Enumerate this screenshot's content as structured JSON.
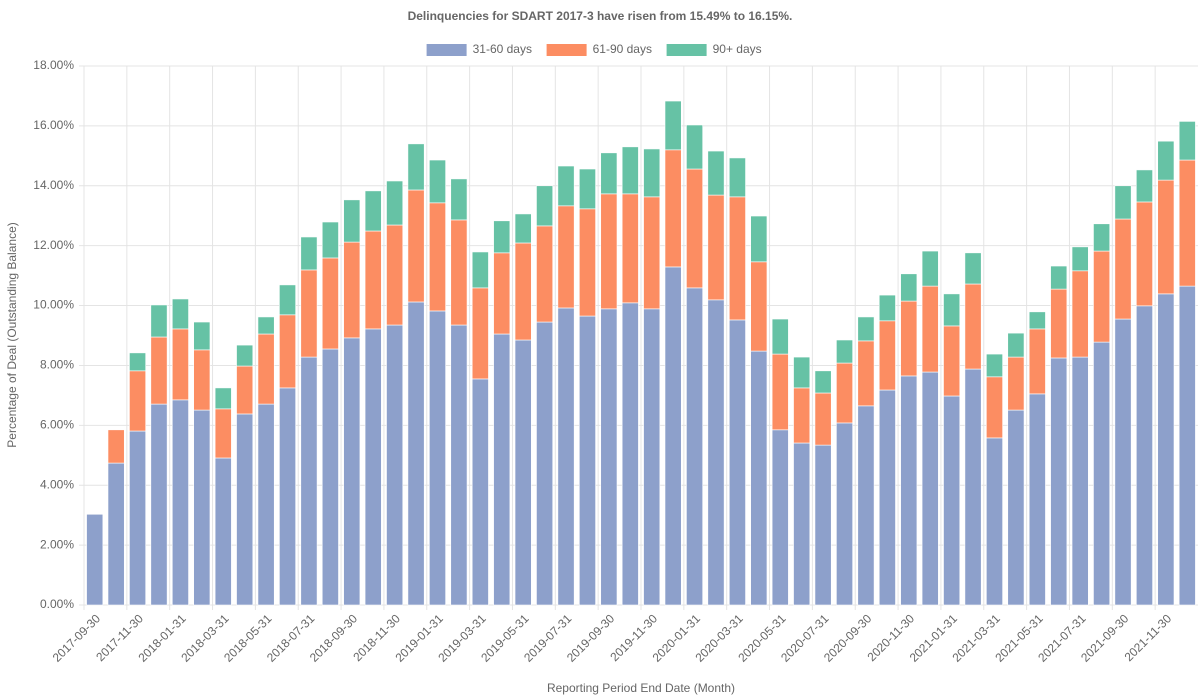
{
  "chart_data": {
    "type": "stacked_bar",
    "title": "Delinquencies for SDART 2017-3 have risen from 15.49% to 16.15%.",
    "x_label": "Reporting Period End Date (Month)",
    "y_label": "Percentage of Deal (Outstanding Balance)",
    "categories": [
      "2017-09-30",
      null,
      "2017-11-30",
      null,
      "2018-01-31",
      null,
      "2018-03-31",
      null,
      "2018-05-31",
      null,
      "2018-07-31",
      null,
      "2018-09-30",
      null,
      "2018-11-30",
      null,
      "2019-01-31",
      null,
      "2019-03-31",
      null,
      "2019-05-31",
      null,
      "2019-07-31",
      null,
      "2019-09-30",
      null,
      "2019-11-30",
      null,
      "2020-01-31",
      null,
      "2020-03-31",
      null,
      "2020-05-31",
      null,
      "2020-07-31",
      null,
      "2020-09-30",
      null,
      "2020-11-30",
      null,
      "2021-01-31",
      null,
      "2021-03-31",
      null,
      "2021-05-31",
      null,
      "2021-07-31",
      null,
      "2021-09-30",
      null,
      "2021-11-30",
      null
    ],
    "series": [
      {
        "name": "31-60 days",
        "color": "#8da0cb",
        "values": [
          3.03,
          4.74,
          5.81,
          6.71,
          6.85,
          6.51,
          4.91,
          6.38,
          6.71,
          7.25,
          8.28,
          8.55,
          8.92,
          9.22,
          9.35,
          10.12,
          9.82,
          9.35,
          7.55,
          9.05,
          8.85,
          9.45,
          9.92,
          9.65,
          9.89,
          10.09,
          9.89,
          11.29,
          10.59,
          10.19,
          9.52,
          8.48,
          5.85,
          5.41,
          5.34,
          6.08,
          6.65,
          7.18,
          7.65,
          7.78,
          6.98,
          7.88,
          5.58,
          6.51,
          7.05,
          8.25,
          8.28,
          8.78,
          9.55,
          9.99,
          10.39,
          10.65
        ]
      },
      {
        "name": "61-90 days",
        "color": "#fc8d62",
        "values": [
          0,
          1.11,
          2.01,
          2.24,
          2.37,
          2.01,
          1.64,
          1.6,
          2.34,
          2.44,
          2.91,
          3.04,
          3.2,
          3.27,
          3.34,
          3.74,
          3.61,
          3.51,
          3.04,
          2.71,
          3.24,
          3.21,
          3.41,
          3.58,
          3.84,
          3.64,
          3.74,
          3.91,
          3.97,
          3.5,
          4.11,
          2.98,
          2.53,
          1.84,
          1.74,
          2.0,
          2.17,
          2.31,
          2.5,
          2.87,
          2.34,
          2.84,
          2.04,
          1.77,
          2.17,
          2.3,
          2.88,
          3.04,
          3.34,
          3.47,
          3.8,
          4.21
        ]
      },
      {
        "name": "90+ days",
        "color": "#66c2a5",
        "values": [
          0,
          0,
          0.6,
          1.07,
          1.0,
          0.93,
          0.7,
          0.7,
          0.57,
          1.0,
          1.1,
          1.2,
          1.41,
          1.34,
          1.47,
          1.54,
          1.43,
          1.37,
          1.2,
          1.07,
          0.97,
          1.34,
          1.33,
          1.33,
          1.37,
          1.57,
          1.6,
          1.63,
          1.47,
          1.47,
          1.3,
          1.53,
          1.17,
          1.03,
          0.74,
          0.77,
          0.8,
          0.86,
          0.91,
          1.17,
          1.07,
          1.04,
          0.76,
          0.8,
          0.57,
          0.77,
          0.8,
          0.91,
          1.11,
          1.07,
          1.3,
          1.29
        ]
      }
    ],
    "ylim": [
      0,
      18
    ],
    "yticks": [
      {
        "value": 0,
        "label": "0.00%"
      },
      {
        "value": 2,
        "label": "2.00%"
      },
      {
        "value": 4,
        "label": "4.00%"
      },
      {
        "value": 6,
        "label": "6.00%"
      },
      {
        "value": 8,
        "label": "8.00%"
      },
      {
        "value": 10,
        "label": "10.00%"
      },
      {
        "value": 12,
        "label": "12.00%"
      },
      {
        "value": 14,
        "label": "14.00%"
      },
      {
        "value": 16,
        "label": "16.00%"
      },
      {
        "value": 18,
        "label": "18.00%"
      }
    ],
    "grid": true,
    "legend": "top"
  }
}
